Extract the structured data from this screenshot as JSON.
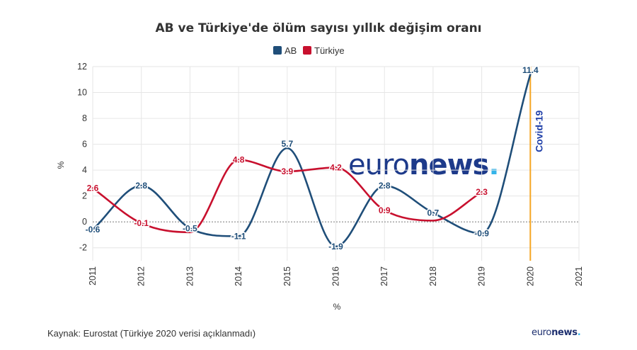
{
  "title": "AB ve Türkiye'de ölüm sayısı yıllık değişim oranı",
  "source": "Kaynak: Eurostat (Türkiye 2020 verisi açıklanmadı)",
  "brand": {
    "light": "euro",
    "bold": "news",
    "dot": "."
  },
  "chart_data": {
    "type": "line",
    "title": "AB ve Türkiye'de ölüm sayısı yıllık değişim oranı",
    "xlabel": "%",
    "ylabel": "%",
    "x": [
      2011,
      2012,
      2013,
      2014,
      2015,
      2016,
      2017,
      2018,
      2019,
      2020,
      2021
    ],
    "x_tick_labels": [
      "2011",
      "2012",
      "2013",
      "2014",
      "2015",
      "2016",
      "2017",
      "2018",
      "2019",
      "2020",
      "2021"
    ],
    "xlim": [
      2011,
      2021
    ],
    "ylim": [
      -3,
      12
    ],
    "y_ticks": [
      -2,
      0,
      2,
      4,
      6,
      8,
      10,
      12
    ],
    "y_tick_labels": [
      "-2",
      "0",
      "2",
      "4",
      "6",
      "8",
      "10",
      "12"
    ],
    "grid": true,
    "legend": "top-center",
    "series": [
      {
        "name": "AB",
        "color": "#1f4e79",
        "x": [
          2011,
          2012,
          2013,
          2014,
          2015,
          2016,
          2017,
          2018,
          2019,
          2020
        ],
        "values": [
          -0.6,
          2.8,
          -0.5,
          -1.1,
          5.7,
          -1.9,
          2.8,
          0.7,
          -0.9,
          11.4
        ],
        "labels": [
          "-0.6",
          "2.8",
          "-0.5",
          "-1.1",
          "5.7",
          "-1.9",
          "2.8",
          "0.7",
          "-0.9",
          "11.4"
        ]
      },
      {
        "name": "Türkiye",
        "color": "#c8102e",
        "x": [
          2011,
          2012,
          2013,
          2014,
          2015,
          2016,
          2017,
          2018,
          2019
        ],
        "values": [
          2.6,
          -0.1,
          -0.8,
          4.8,
          3.9,
          4.2,
          0.9,
          0.1,
          2.3
        ],
        "labels": [
          "2.6",
          "-0.1",
          "",
          "4.8",
          "3.9",
          "4.2",
          "0.9",
          "",
          "2.3"
        ]
      }
    ],
    "reference_line": {
      "y": 0,
      "style": "dotted"
    },
    "annotation": {
      "x": 2020,
      "text": "Covid-19",
      "line_color": "#f5a623",
      "text_color": "#1f3fa8"
    }
  }
}
